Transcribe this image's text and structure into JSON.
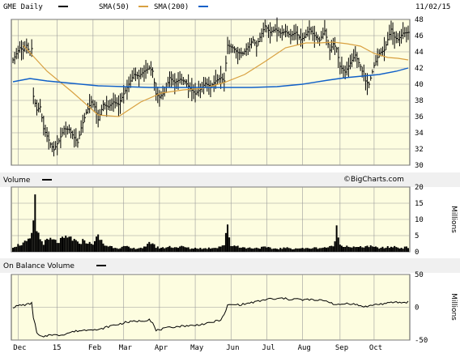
{
  "header": {
    "ticker_label": "GME Daily",
    "sma50_label": "SMA(50)",
    "sma200_label": "SMA(200)",
    "date": "11/02/15",
    "colors": {
      "price": "#000000",
      "sma50": "#d8a040",
      "sma200": "#1060c8",
      "bg": "#fdfde0",
      "grid": "#9a9a9a"
    }
  },
  "watermark": "©BigCharts.com",
  "volume_panel": {
    "title": "Volume",
    "unit": "Millions"
  },
  "obv_panel": {
    "title": "On Balance Volume",
    "unit": "Millions"
  },
  "chart_data": [
    {
      "type": "line",
      "title": "GME Daily",
      "ylim": [
        30,
        48
      ],
      "yticks": [
        30,
        32,
        34,
        36,
        38,
        40,
        42,
        44,
        46,
        48
      ],
      "grid": true,
      "xticks": [
        {
          "label": "Dec",
          "i": 3
        },
        {
          "label": "15",
          "i": 26
        },
        {
          "label": "Feb",
          "i": 47
        },
        {
          "label": "Mar",
          "i": 65
        },
        {
          "label": "Apr",
          "i": 86
        },
        {
          "label": "May",
          "i": 107
        },
        {
          "label": "Jun",
          "i": 128
        },
        {
          "label": "Jul",
          "i": 149
        },
        {
          "label": "Aug",
          "i": 170
        },
        {
          "label": "Sep",
          "i": 192
        },
        {
          "label": "Oct",
          "i": 212
        }
      ],
      "n_days": 233,
      "series": [
        {
          "name": "GME Daily",
          "points": [
            [
              0,
              43.0
            ],
            [
              4,
              44.5
            ],
            [
              6,
              44.2
            ],
            [
              8,
              44.8
            ],
            [
              10,
              43.8
            ],
            [
              11,
              44.4
            ],
            [
              12,
              38.5
            ],
            [
              14,
              36.8
            ],
            [
              16,
              37.2
            ],
            [
              18,
              34.5
            ],
            [
              20,
              33.6
            ],
            [
              22,
              32.6
            ],
            [
              24,
              31.9
            ],
            [
              27,
              33.0
            ],
            [
              30,
              34.5
            ],
            [
              33,
              34.4
            ],
            [
              36,
              33.4
            ],
            [
              38,
              32.8
            ],
            [
              40,
              34.6
            ],
            [
              43,
              36.5
            ],
            [
              46,
              37.8
            ],
            [
              48,
              37.2
            ],
            [
              50,
              35.6
            ],
            [
              53,
              37.5
            ],
            [
              56,
              37.2
            ],
            [
              59,
              37.8
            ],
            [
              62,
              37.5
            ],
            [
              65,
              38.8
            ],
            [
              68,
              40.0
            ],
            [
              71,
              41.2
            ],
            [
              74,
              41.0
            ],
            [
              77,
              41.6
            ],
            [
              80,
              42.0
            ],
            [
              82,
              41.6
            ],
            [
              84,
              38.8
            ],
            [
              86,
              38.4
            ],
            [
              89,
              39.0
            ],
            [
              92,
              40.8
            ],
            [
              95,
              40.2
            ],
            [
              98,
              40.6
            ],
            [
              101,
              40.3
            ],
            [
              104,
              39.5
            ],
            [
              107,
              38.8
            ],
            [
              110,
              39.4
            ],
            [
              113,
              40.1
            ],
            [
              116,
              39.7
            ],
            [
              119,
              40.4
            ],
            [
              122,
              40.8
            ],
            [
              124,
              40.4
            ],
            [
              126,
              44.8
            ],
            [
              129,
              44.5
            ],
            [
              132,
              43.9
            ],
            [
              135,
              43.8
            ],
            [
              138,
              44.6
            ],
            [
              141,
              45.5
            ],
            [
              143,
              44.7
            ],
            [
              145,
              45.8
            ],
            [
              148,
              47.2
            ],
            [
              151,
              46.4
            ],
            [
              154,
              46.8
            ],
            [
              157,
              46.3
            ],
            [
              160,
              46.5
            ],
            [
              163,
              46.0
            ],
            [
              166,
              46.4
            ],
            [
              169,
              45.5
            ],
            [
              171,
              45.8
            ],
            [
              174,
              46.8
            ],
            [
              177,
              46.0
            ],
            [
              180,
              45.4
            ],
            [
              183,
              46.6
            ],
            [
              186,
              44.2
            ],
            [
              188,
              45.0
            ],
            [
              190,
              44.4
            ],
            [
              192,
              42.2
            ],
            [
              195,
              41.5
            ],
            [
              198,
              42.6
            ],
            [
              201,
              43.6
            ],
            [
              204,
              42.2
            ],
            [
              207,
              40.4
            ],
            [
              209,
              40.0
            ],
            [
              212,
              42.3
            ],
            [
              215,
              43.8
            ],
            [
              218,
              44.2
            ],
            [
              220,
              45.5
            ],
            [
              222,
              46.8
            ],
            [
              224,
              45.8
            ],
            [
              226,
              45.5
            ],
            [
              229,
              46.3
            ],
            [
              232,
              46.4
            ]
          ]
        },
        {
          "name": "SMA(50)",
          "points": [
            [
              6,
              44.8
            ],
            [
              20,
              41.6
            ],
            [
              35,
              39.0
            ],
            [
              50,
              36.2
            ],
            [
              62,
              36.0
            ],
            [
              75,
              37.8
            ],
            [
              87,
              38.9
            ],
            [
              100,
              39.3
            ],
            [
              112,
              39.5
            ],
            [
              124,
              40.2
            ],
            [
              136,
              41.2
            ],
            [
              148,
              42.8
            ],
            [
              160,
              44.5
            ],
            [
              172,
              45.1
            ],
            [
              180,
              45.1
            ],
            [
              188,
              45.2
            ],
            [
              196,
              45.0
            ],
            [
              204,
              44.7
            ],
            [
              212,
              43.8
            ],
            [
              220,
              43.3
            ],
            [
              226,
              43.2
            ],
            [
              232,
              43.0
            ]
          ]
        },
        {
          "name": "SMA(200)",
          "points": [
            [
              0,
              40.3
            ],
            [
              10,
              40.7
            ],
            [
              20,
              40.4
            ],
            [
              35,
              40.1
            ],
            [
              50,
              39.8
            ],
            [
              65,
              39.7
            ],
            [
              80,
              39.6
            ],
            [
              95,
              39.6
            ],
            [
              110,
              39.6
            ],
            [
              125,
              39.6
            ],
            [
              140,
              39.6
            ],
            [
              155,
              39.7
            ],
            [
              170,
              40.0
            ],
            [
              185,
              40.5
            ],
            [
              195,
              40.8
            ],
            [
              205,
              41.0
            ],
            [
              215,
              41.2
            ],
            [
              225,
              41.6
            ],
            [
              232,
              42.0
            ]
          ]
        }
      ]
    },
    {
      "type": "bar",
      "title": "Volume",
      "ylabel": "Millions",
      "ylim": [
        0,
        20
      ],
      "yticks": [
        0,
        5,
        10,
        15,
        20
      ],
      "grid": true,
      "series": [
        {
          "name": "Volume",
          "points": [
            [
              0,
              1.6
            ],
            [
              5,
              2.4
            ],
            [
              10,
              3.5
            ],
            [
              12,
              8.0
            ],
            [
              13,
              17.5
            ],
            [
              14,
              7.0
            ],
            [
              16,
              3.8
            ],
            [
              18,
              2.8
            ],
            [
              22,
              3.8
            ],
            [
              26,
              3.0
            ],
            [
              30,
              4.0
            ],
            [
              34,
              4.4
            ],
            [
              38,
              2.6
            ],
            [
              42,
              3.6
            ],
            [
              46,
              2.2
            ],
            [
              50,
              4.6
            ],
            [
              54,
              2.0
            ],
            [
              58,
              1.6
            ],
            [
              62,
              1.2
            ],
            [
              66,
              1.6
            ],
            [
              70,
              1.0
            ],
            [
              74,
              1.2
            ],
            [
              78,
              1.4
            ],
            [
              80,
              2.6
            ],
            [
              82,
              3.0
            ],
            [
              84,
              1.4
            ],
            [
              88,
              1.2
            ],
            [
              92,
              1.6
            ],
            [
              96,
              1.4
            ],
            [
              100,
              1.6
            ],
            [
              104,
              1.0
            ],
            [
              108,
              1.2
            ],
            [
              112,
              1.0
            ],
            [
              116,
              1.2
            ],
            [
              120,
              1.4
            ],
            [
              124,
              2.2
            ],
            [
              126,
              7.5
            ],
            [
              128,
              2.0
            ],
            [
              132,
              1.8
            ],
            [
              136,
              1.2
            ],
            [
              140,
              1.2
            ],
            [
              144,
              1.2
            ],
            [
              148,
              1.4
            ],
            [
              152,
              1.0
            ],
            [
              156,
              1.0
            ],
            [
              160,
              1.2
            ],
            [
              164,
              1.0
            ],
            [
              168,
              1.1
            ],
            [
              172,
              1.0
            ],
            [
              176,
              1.2
            ],
            [
              180,
              1.2
            ],
            [
              184,
              1.4
            ],
            [
              188,
              1.6
            ],
            [
              190,
              7.0
            ],
            [
              192,
              2.2
            ],
            [
              196,
              1.8
            ],
            [
              200,
              1.4
            ],
            [
              204,
              1.4
            ],
            [
              208,
              1.8
            ],
            [
              212,
              1.4
            ],
            [
              216,
              1.2
            ],
            [
              220,
              1.4
            ],
            [
              224,
              1.6
            ],
            [
              228,
              1.2
            ],
            [
              232,
              1.4
            ]
          ]
        }
      ]
    },
    {
      "type": "line",
      "title": "On Balance Volume",
      "ylabel": "Millions",
      "ylim": [
        -50,
        50
      ],
      "yticks": [
        -50,
        0,
        50
      ],
      "grid": true,
      "series": [
        {
          "name": "On Balance Volume",
          "points": [
            [
              0,
              0
            ],
            [
              4,
              3
            ],
            [
              8,
              4
            ],
            [
              11,
              6
            ],
            [
              12,
              -15
            ],
            [
              13,
              -25
            ],
            [
              14,
              -40
            ],
            [
              16,
              -44
            ],
            [
              18,
              -46
            ],
            [
              22,
              -41
            ],
            [
              26,
              -43
            ],
            [
              30,
              -41
            ],
            [
              34,
              -38
            ],
            [
              38,
              -36
            ],
            [
              42,
              -35
            ],
            [
              46,
              -33
            ],
            [
              50,
              -35
            ],
            [
              54,
              -31
            ],
            [
              58,
              -28
            ],
            [
              62,
              -26
            ],
            [
              66,
              -23
            ],
            [
              70,
              -22
            ],
            [
              74,
              -21
            ],
            [
              78,
              -20
            ],
            [
              80,
              -18
            ],
            [
              82,
              -24
            ],
            [
              84,
              -36
            ],
            [
              86,
              -34
            ],
            [
              90,
              -32
            ],
            [
              94,
              -30
            ],
            [
              98,
              -29
            ],
            [
              102,
              -28
            ],
            [
              106,
              -28
            ],
            [
              110,
              -26
            ],
            [
              114,
              -25
            ],
            [
              118,
              -22
            ],
            [
              122,
              -19
            ],
            [
              124,
              -12
            ],
            [
              126,
              3
            ],
            [
              130,
              4
            ],
            [
              134,
              4
            ],
            [
              138,
              6
            ],
            [
              142,
              8
            ],
            [
              146,
              10
            ],
            [
              150,
              13
            ],
            [
              154,
              12
            ],
            [
              158,
              14
            ],
            [
              162,
              12
            ],
            [
              166,
              13
            ],
            [
              170,
              11
            ],
            [
              174,
              12
            ],
            [
              178,
              10
            ],
            [
              182,
              11
            ],
            [
              186,
              8
            ],
            [
              190,
              3
            ],
            [
              192,
              4
            ],
            [
              196,
              6
            ],
            [
              200,
              5
            ],
            [
              204,
              2
            ],
            [
              208,
              1
            ],
            [
              212,
              4
            ],
            [
              216,
              5
            ],
            [
              220,
              6
            ],
            [
              224,
              8
            ],
            [
              228,
              7
            ],
            [
              232,
              8
            ]
          ]
        }
      ]
    }
  ]
}
